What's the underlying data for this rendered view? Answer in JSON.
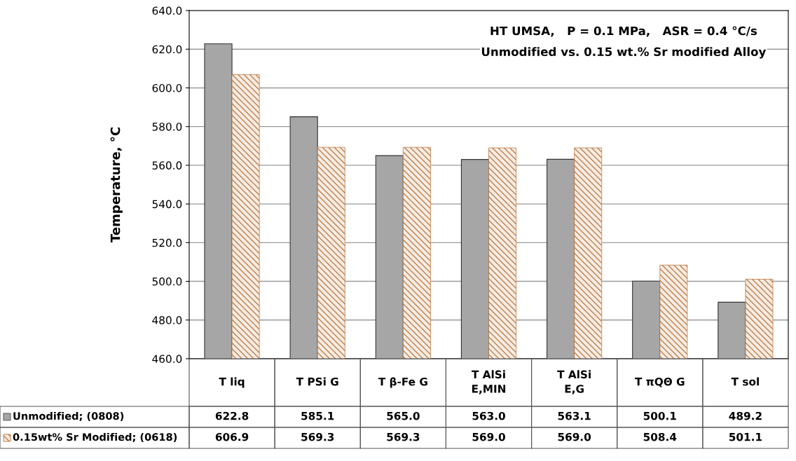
{
  "chart_data": {
    "type": "bar",
    "title": "HT UMSA,   P = 0.1 MPa,   ASR = 0.4 °C/s",
    "subtitle": "Unmodified vs. 0.15 wt.% Sr modified Alloy",
    "ylabel": "Temperature, °C",
    "categories": [
      "T liq",
      "T PSi G",
      "T β-Fe G",
      "T AlSi\nE,MIN",
      "T AlSi\nE,G",
      "T πQΘ G",
      "T sol"
    ],
    "series": [
      {
        "name": "Unmodified; (0808)",
        "color": "#a6a6a6",
        "values": [
          622.8,
          585.1,
          565.0,
          563.0,
          563.1,
          500.1,
          489.2
        ],
        "value_labels": [
          "622.8",
          "585.1",
          "565.0",
          "563.0",
          "563.1",
          "500.1",
          "489.2"
        ]
      },
      {
        "name": "0.15wt% Sr Modified; (0618)",
        "color": "#c0804a",
        "values": [
          606.9,
          569.3,
          569.3,
          569.0,
          569.0,
          508.4,
          501.1
        ],
        "value_labels": [
          "606.9",
          "569.3",
          "569.3",
          "569.0",
          "569.0",
          "508.4",
          "501.1"
        ]
      }
    ],
    "ylim": [
      460,
      640
    ],
    "yticks": [
      {
        "value": 460,
        "label": "460.0"
      },
      {
        "value": 480,
        "label": "480.0"
      },
      {
        "value": 500,
        "label": "500.0"
      },
      {
        "value": 520,
        "label": "520.0"
      },
      {
        "value": 540,
        "label": "540.0"
      },
      {
        "value": 560,
        "label": "560.0"
      },
      {
        "value": 580,
        "label": "580.0"
      },
      {
        "value": 600,
        "label": "600.0"
      },
      {
        "value": 620,
        "label": "620.0"
      },
      {
        "value": 640,
        "label": "640.0"
      }
    ],
    "grid": "y",
    "legend": "bottom"
  }
}
